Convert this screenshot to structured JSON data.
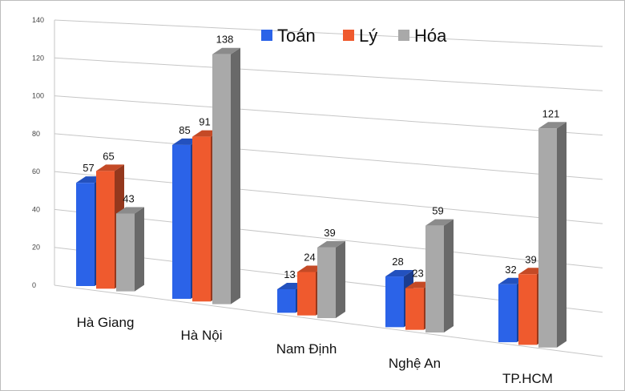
{
  "chart_data": {
    "type": "bar",
    "categories": [
      "Hà Giang",
      "Hà Nội",
      "Nam Định",
      "Nghệ An",
      "TP.HCM"
    ],
    "series": [
      {
        "name": "Toán",
        "values": [
          57,
          85,
          13,
          28,
          32
        ],
        "color": "#2b63e8"
      },
      {
        "name": "Lý",
        "values": [
          65,
          91,
          24,
          23,
          39
        ],
        "color": "#ef5a2e"
      },
      {
        "name": "Hóa",
        "values": [
          43,
          138,
          39,
          59,
          121
        ],
        "color": "#a9a9a9"
      }
    ],
    "yticks": [
      0,
      20,
      40,
      60,
      80,
      100,
      120,
      140
    ],
    "ylim": [
      0,
      140
    ],
    "grid": true,
    "legend_position": "top-center",
    "style": "3d-perspective"
  }
}
